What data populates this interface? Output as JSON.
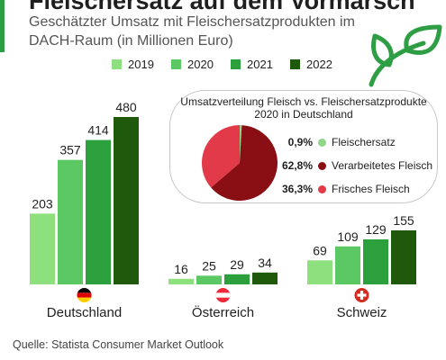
{
  "header": {
    "title": "Fleischersatz auf dem Vormarsch",
    "subtitle": "Geschätzter Umsatz mit Fleischersatzprodukten im DACH-Raum (in Millionen Euro)",
    "accent_color": "#2e9e45"
  },
  "chart_data": [
    {
      "type": "bar",
      "categories": [
        "Deutschland",
        "Österreich",
        "Schweiz"
      ],
      "series": [
        {
          "name": "2019",
          "values": [
            203,
            16,
            69
          ],
          "color": "#8ee07e"
        },
        {
          "name": "2020",
          "values": [
            357,
            25,
            109
          ],
          "color": "#5cc864"
        },
        {
          "name": "2021",
          "values": [
            414,
            29,
            129
          ],
          "color": "#2ba03c"
        },
        {
          "name": "2022",
          "values": [
            480,
            34,
            155
          ],
          "color": "#1f5a0c"
        }
      ],
      "legend": "top",
      "grid": false,
      "flags": [
        "germany-flag",
        "austria-flag",
        "switzerland-flag"
      ]
    },
    {
      "type": "pie",
      "title": "Umsatzverteilung Fleisch vs. Fleischersatzprodukte 2020 in Deutschland",
      "slices": [
        {
          "label": "Fleischersatz",
          "value": 0.9,
          "display": "0,9%",
          "color": "#90d68a"
        },
        {
          "label": "Verarbeitetes Fleisch",
          "value": 62.8,
          "display": "62,8%",
          "color": "#8a0f14"
        },
        {
          "label": "Frisches Fleisch",
          "value": 36.3,
          "display": "36,3%",
          "color": "#e23a48"
        }
      ]
    }
  ],
  "footer": {
    "source": "Quelle: Statista Consumer Market Outlook"
  },
  "icons": {
    "decor": "leaf-icon"
  }
}
